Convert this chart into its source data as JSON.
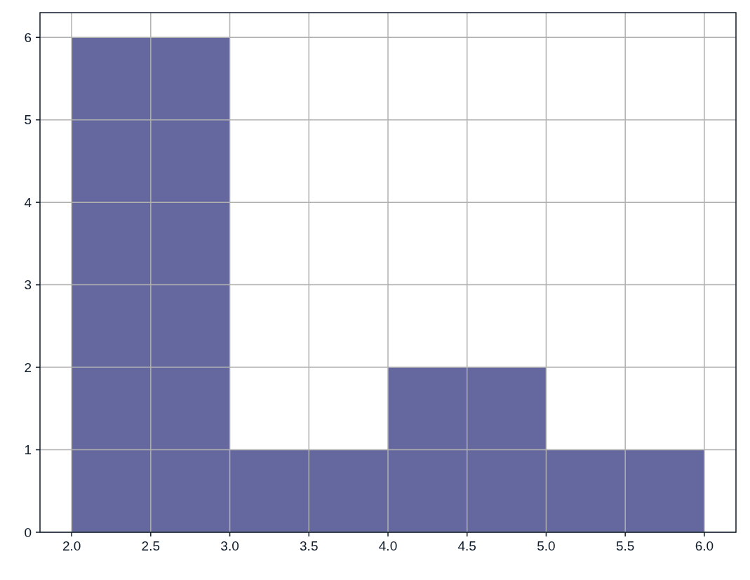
{
  "chart_data": {
    "type": "histogram",
    "bins": [
      2,
      3,
      4,
      5,
      6
    ],
    "values": [
      6,
      1,
      2,
      1
    ],
    "color": "#65679f",
    "xlim": [
      1.8,
      6.2
    ],
    "ylim": [
      0,
      6.3
    ],
    "xticks": [
      {
        "value": 2,
        "label": "2.0"
      },
      {
        "value": 2.5,
        "label": "2.5"
      },
      {
        "value": 3,
        "label": "3.0"
      },
      {
        "value": 3.5,
        "label": "3.5"
      },
      {
        "value": 4,
        "label": "4.0"
      },
      {
        "value": 4.5,
        "label": "4.5"
      },
      {
        "value": 5,
        "label": "5.0"
      },
      {
        "value": 5.5,
        "label": "5.5"
      },
      {
        "value": 6,
        "label": "6.0"
      }
    ],
    "yticks": [
      0,
      1,
      2,
      3,
      4,
      5,
      6
    ],
    "grid": true
  }
}
